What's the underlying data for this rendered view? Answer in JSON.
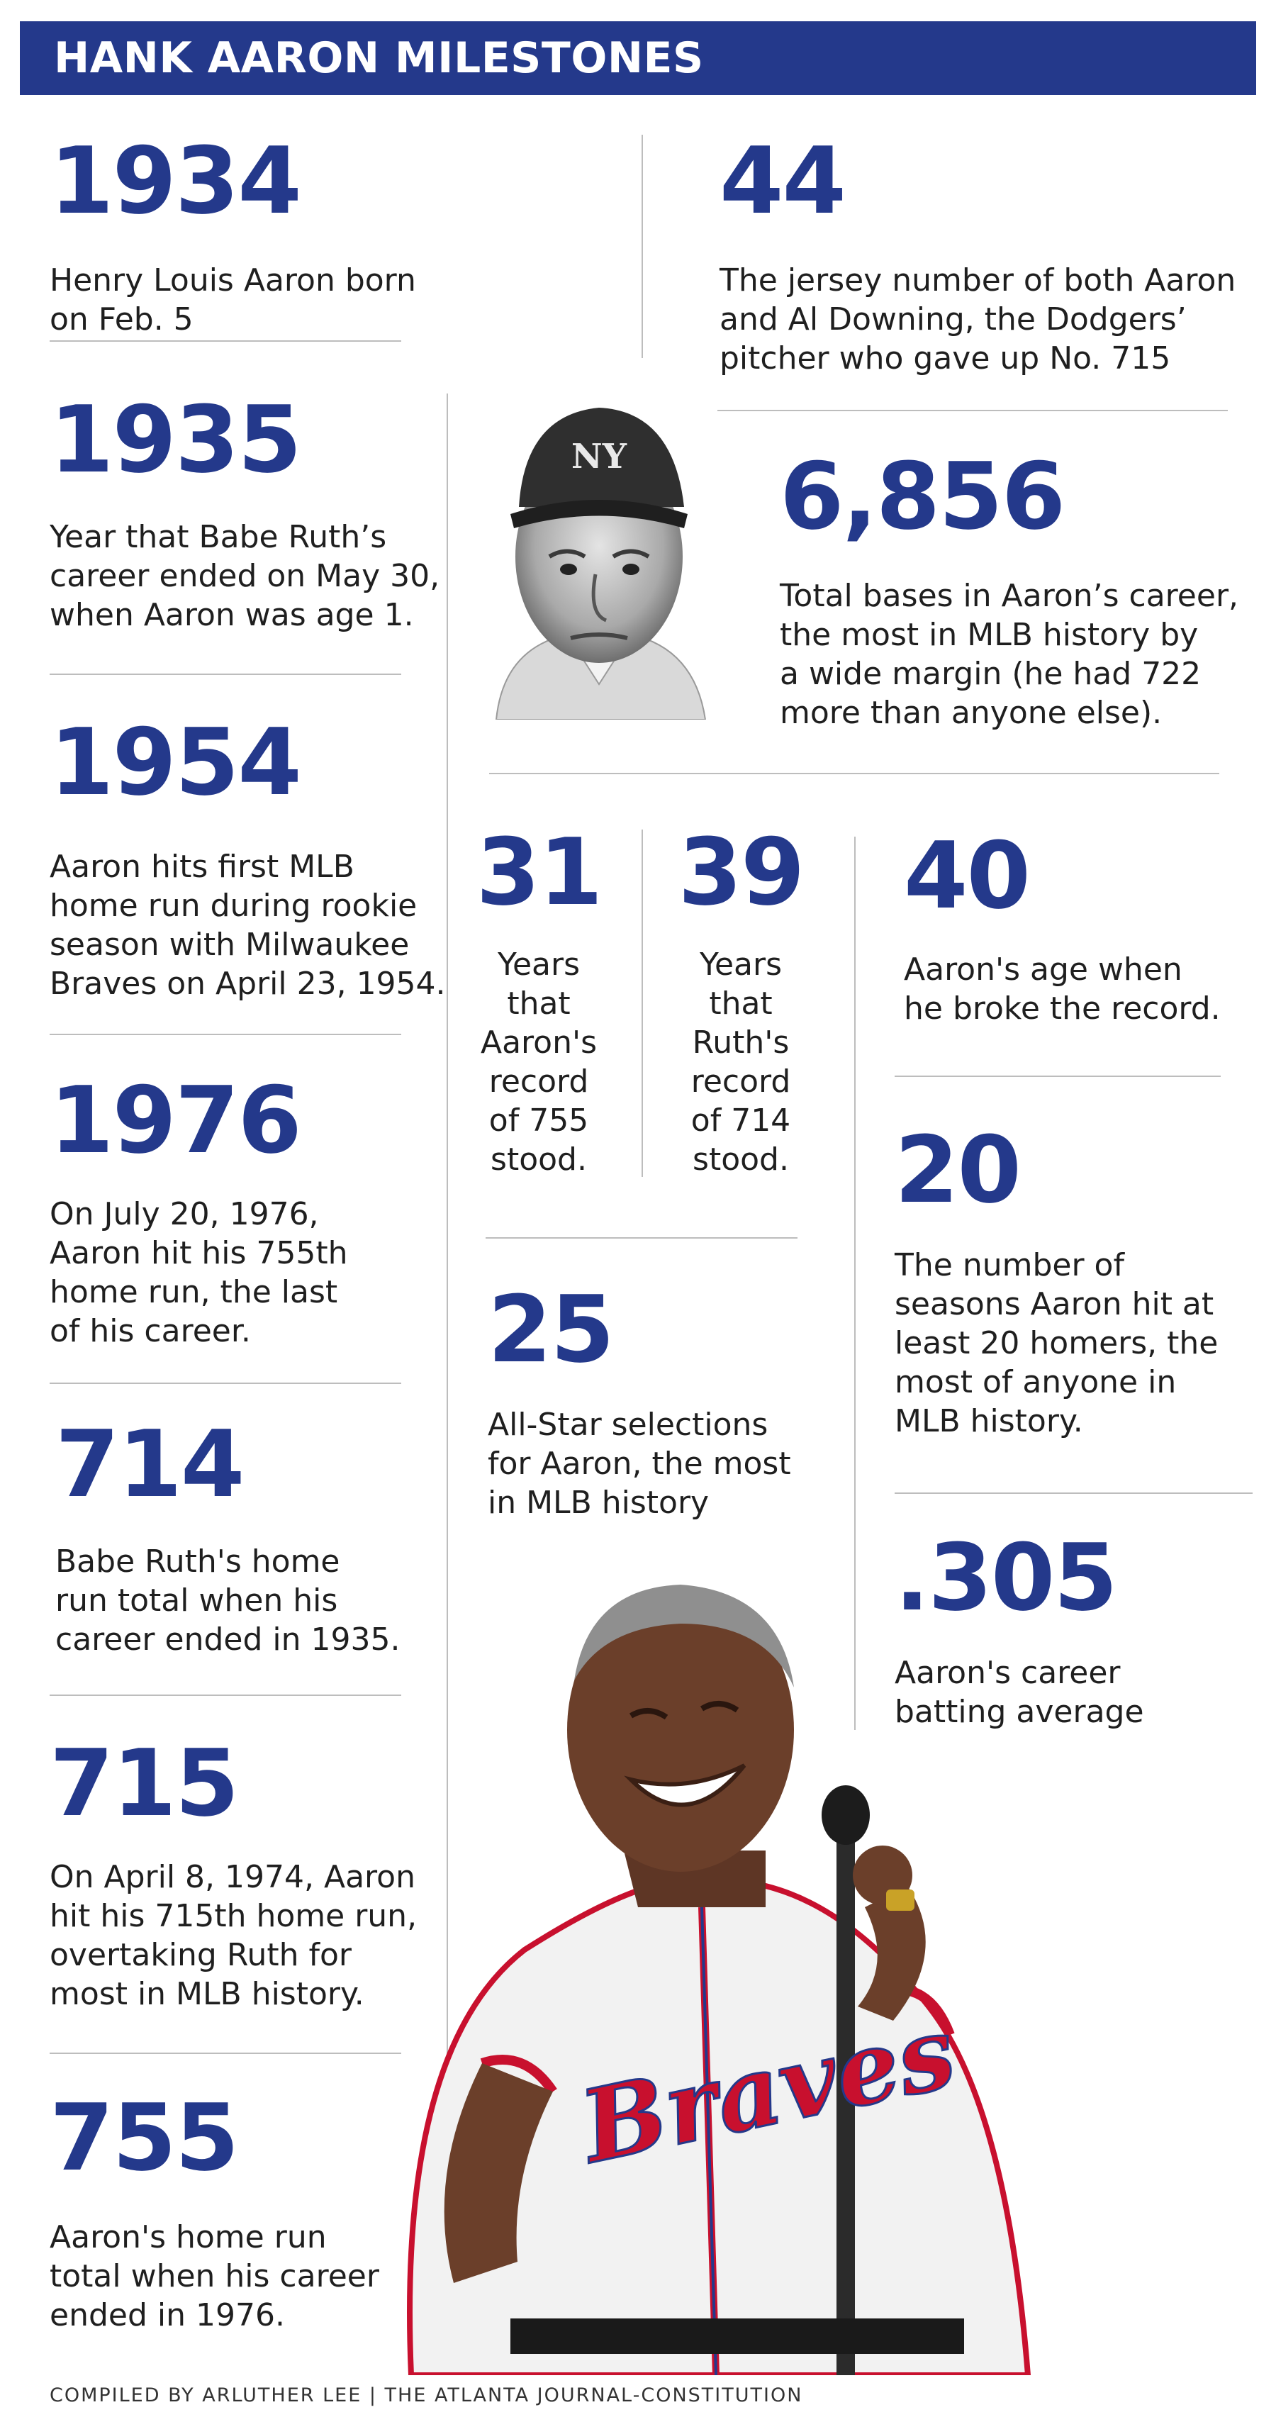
{
  "header": {
    "title": "HANK AARON MILESTONES"
  },
  "left_column": [
    {
      "number": "1934",
      "text": "Henry Louis Aaron born on Feb. 5"
    },
    {
      "number": "1935",
      "text": "Year that Babe Ruth’s\ncareer ended on May 30,\nwhen Aaron was age 1."
    },
    {
      "number": "1954",
      "text": "Aaron hits first MLB\nhome run during rookie\nseason with Milwaukee\nBraves on April 23, 1954."
    },
    {
      "number": "1976",
      "text": "On July 20, 1976,\nAaron hit his 755th\nhome run, the last\nof his career."
    },
    {
      "number": "714",
      "text": "Babe Ruth's home\nrun total when his\ncareer ended in 1935."
    },
    {
      "number": "715",
      "text": "On April 8, 1974, Aaron\nhit his 715th home run,\novertaking Ruth for\nmost in MLB history."
    },
    {
      "number": "755",
      "text": "Aaron's home run\ntotal when his career\nended in 1976."
    }
  ],
  "right_column": {
    "jersey": {
      "number": "44",
      "text": "The jersey number of both Aaron\nand Al Downing, the Dodgers’\npitcher who gave up No. 715"
    },
    "total_bases": {
      "number": "6,856",
      "text": "Total bases in Aaron’s career,\nthe most in MLB history by\na wide margin (he had 722\nmore than anyone else)."
    },
    "aaron_record_years": {
      "number": "31",
      "text": "Years\nthat\nAaron's\nrecord\nof 755\nstood."
    },
    "ruth_record_years": {
      "number": "39",
      "text": "Years\nthat\nRuth's\nrecord\nof 714\nstood."
    },
    "age_record": {
      "number": "40",
      "text": "Aaron's age when\nhe broke the record."
    },
    "all_star": {
      "number": "25",
      "text": "All-Star selections\nfor Aaron, the most\nin MLB history"
    },
    "seasons_20_hr": {
      "number": "20",
      "text": "The number of\nseasons Aaron hit at\nleast 20 homers, the\nmost of anyone in\nMLB history."
    },
    "batting_avg": {
      "number": ".305",
      "text": "Aaron's career\nbatting average"
    }
  },
  "photos": {
    "ruth_cap_logo": "NY",
    "aaron_jersey_text": "Braves"
  },
  "credit": "COMPILED BY ARLUTHER LEE  |  THE ATLANTA JOURNAL-CONSTITUTION",
  "colors": {
    "accent": "#24398b",
    "jersey_red": "#c8102e",
    "divider": "#bdbdbd"
  }
}
